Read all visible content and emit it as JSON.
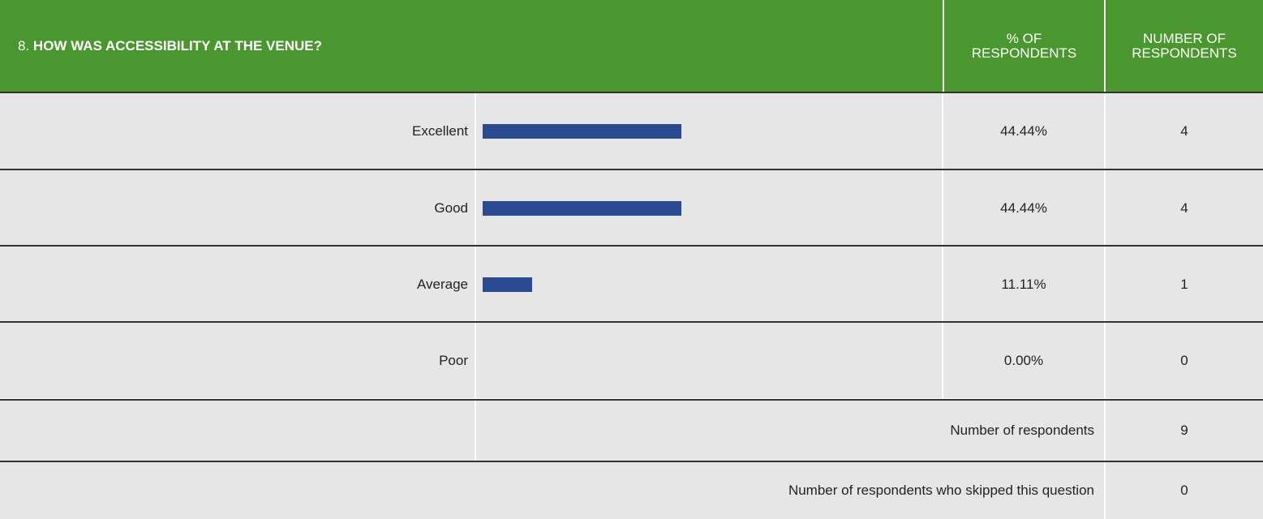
{
  "header": {
    "number": "8.",
    "question": "HOW WAS ACCESSIBILITY AT THE VENUE?",
    "percent_heading": "% OF RESPONDENTS",
    "count_heading": "NUMBER OF RESPONDENTS"
  },
  "rows": [
    {
      "label": "Excellent",
      "percent": 44.44,
      "percent_label": "44.44%",
      "count": 4
    },
    {
      "label": "Good",
      "percent": 44.44,
      "percent_label": "44.44%",
      "count": 4
    },
    {
      "label": "Average",
      "percent": 11.11,
      "percent_label": "11.11%",
      "count": 1
    },
    {
      "label": "Poor",
      "percent": 0,
      "percent_label": "0.00%",
      "count": 0
    }
  ],
  "summary": [
    {
      "label": "Number of respondents",
      "count": 9
    },
    {
      "label": "Number of respondents who skipped this question",
      "count": 0
    }
  ],
  "bar_color": "#2a4a91"
}
